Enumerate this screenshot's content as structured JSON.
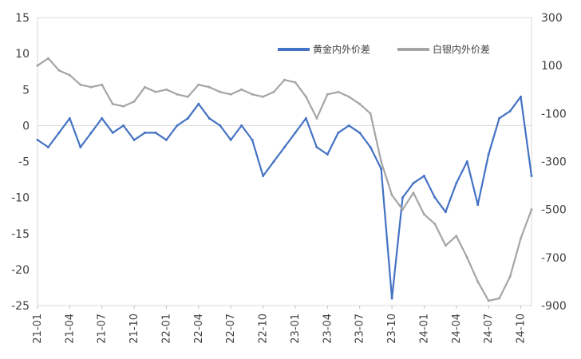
{
  "chart_data": {
    "type": "line",
    "title": "",
    "legend_position": "top-right",
    "grid": false,
    "x_ticks": [
      "21-01",
      "21-04",
      "21-07",
      "21-10",
      "22-01",
      "22-04",
      "22-07",
      "22-10",
      "23-01",
      "23-04",
      "23-07",
      "23-10",
      "24-01",
      "24-04",
      "24-07",
      "24-10"
    ],
    "x_range": [
      "21-01",
      "24-11"
    ],
    "y_left": {
      "range": [
        -25,
        15
      ],
      "ticks": [
        15,
        10,
        5,
        0,
        -5,
        -10,
        -15,
        -20,
        -25
      ]
    },
    "y_right": {
      "range": [
        -900,
        300
      ],
      "ticks": [
        300,
        100,
        -100,
        -300,
        -500,
        -700,
        -900
      ]
    },
    "series": [
      {
        "name": "黄金内外价差",
        "axis": "left",
        "color": "#4472C4",
        "x": [
          "21-01",
          "21-02",
          "21-03",
          "21-04",
          "21-05",
          "21-06",
          "21-07",
          "21-08",
          "21-09",
          "21-10",
          "21-11",
          "21-12",
          "22-01",
          "22-02",
          "22-03",
          "22-04",
          "22-05",
          "22-06",
          "22-07",
          "22-08",
          "22-09",
          "22-10",
          "22-11",
          "22-12",
          "23-01",
          "23-02",
          "23-03",
          "23-04",
          "23-05",
          "23-06",
          "23-07",
          "23-08",
          "23-09",
          "23-10",
          "23-11",
          "23-12",
          "24-01",
          "24-02",
          "24-03",
          "24-04",
          "24-05",
          "24-06",
          "24-07",
          "24-08",
          "24-09",
          "24-10",
          "24-11"
        ],
        "values": [
          -2,
          -3,
          -1,
          1,
          -3,
          -1,
          1,
          -1,
          0,
          -2,
          -1,
          -1,
          -2,
          0,
          1,
          3,
          1,
          0,
          -2,
          0,
          -2,
          -7,
          -5,
          -3,
          -1,
          1,
          -3,
          -4,
          -1,
          0,
          -1,
          -3,
          -6,
          -24,
          -10,
          -8,
          -7,
          -10,
          -12,
          -8,
          -5,
          -11,
          -4,
          1,
          2,
          4,
          -7
        ]
      },
      {
        "name": "白银内外价差",
        "axis": "right",
        "color": "#A5A5A5",
        "x": [
          "21-01",
          "21-02",
          "21-03",
          "21-04",
          "21-05",
          "21-06",
          "21-07",
          "21-08",
          "21-09",
          "21-10",
          "21-11",
          "21-12",
          "22-01",
          "22-02",
          "22-03",
          "22-04",
          "22-05",
          "22-06",
          "22-07",
          "22-08",
          "22-09",
          "22-10",
          "22-11",
          "22-12",
          "23-01",
          "23-02",
          "23-03",
          "23-04",
          "23-05",
          "23-06",
          "23-07",
          "23-08",
          "23-09",
          "23-10",
          "23-11",
          "23-12",
          "24-01",
          "24-02",
          "24-03",
          "24-04",
          "24-05",
          "24-06",
          "24-07",
          "24-08",
          "24-09",
          "24-10",
          "24-11"
        ],
        "values": [
          100,
          130,
          80,
          60,
          20,
          10,
          20,
          -60,
          -70,
          -50,
          10,
          -10,
          0,
          -20,
          -30,
          20,
          10,
          -10,
          -20,
          0,
          -20,
          -30,
          -10,
          40,
          30,
          -30,
          -120,
          -20,
          -10,
          -30,
          -60,
          -100,
          -300,
          -440,
          -500,
          -430,
          -520,
          -560,
          -650,
          -610,
          -700,
          -800,
          -880,
          -870,
          -780,
          -620,
          -500
        ]
      }
    ]
  }
}
